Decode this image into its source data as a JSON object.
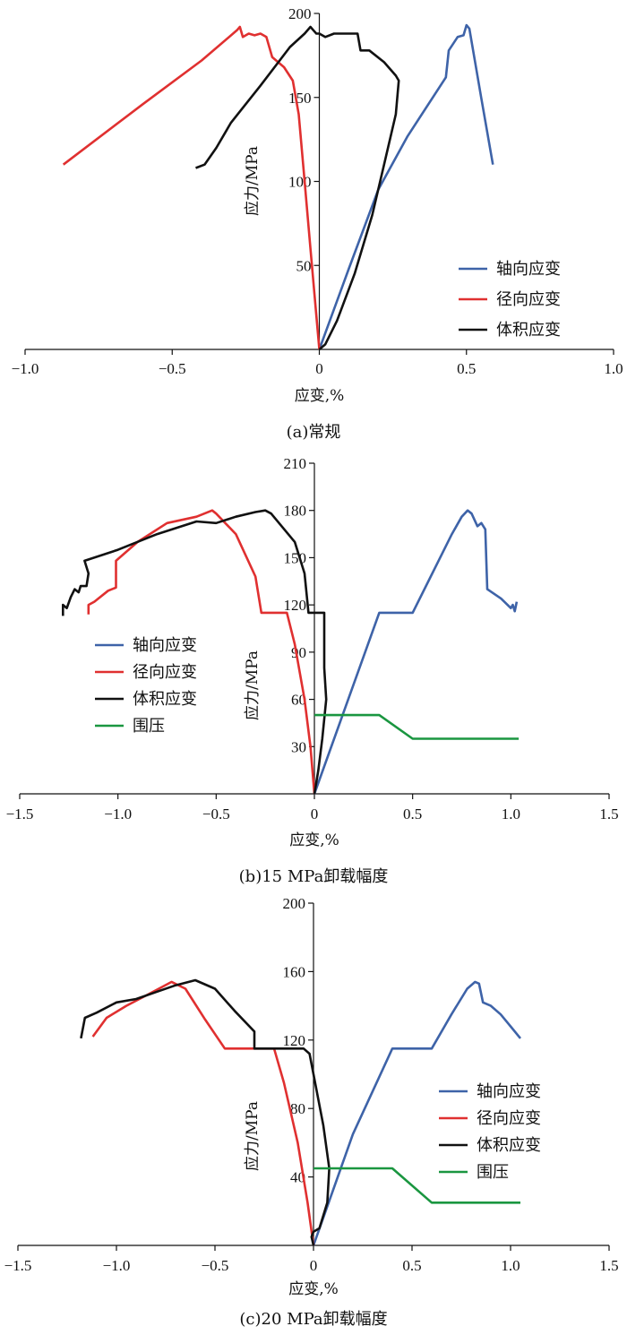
{
  "chart_data": [
    {
      "type": "line",
      "caption": "(a)常规",
      "xlabel": "应变,%",
      "ylabel": "应力/MPa",
      "xlim": [
        -1.0,
        1.0
      ],
      "ylim": [
        0,
        200
      ],
      "x_ticks": [
        "−1.0",
        "−0.5",
        "0",
        "0.5",
        "1.0"
      ],
      "x_tick_values": [
        -1.0,
        -0.5,
        0,
        0.5,
        1.0
      ],
      "y_ticks": [
        "50",
        "100",
        "150",
        "200"
      ],
      "y_tick_values": [
        50,
        100,
        150,
        200
      ],
      "legend_position": "right",
      "series": [
        {
          "name": "轴向应变",
          "color": "#3e63a8",
          "points": [
            [
              0,
              0
            ],
            [
              0.1,
              48
            ],
            [
              0.2,
              95
            ],
            [
              0.3,
              127
            ],
            [
              0.43,
              162
            ],
            [
              0.44,
              178
            ],
            [
              0.47,
              186
            ],
            [
              0.49,
              187
            ],
            [
              0.5,
              193
            ],
            [
              0.51,
              191
            ],
            [
              0.55,
              150
            ],
            [
              0.59,
              110
            ]
          ]
        },
        {
          "name": "径向应变",
          "color": "#e03030",
          "points": [
            [
              -0.87,
              110
            ],
            [
              -0.6,
              146
            ],
            [
              -0.4,
              172
            ],
            [
              -0.28,
              190
            ],
            [
              -0.27,
              192
            ],
            [
              -0.26,
              186
            ],
            [
              -0.24,
              188
            ],
            [
              -0.22,
              187
            ],
            [
              -0.2,
              188
            ],
            [
              -0.18,
              186
            ],
            [
              -0.16,
              174
            ],
            [
              -0.12,
              168
            ],
            [
              -0.09,
              160
            ],
            [
              -0.07,
              140
            ],
            [
              -0.05,
              100
            ],
            [
              -0.03,
              60
            ],
            [
              -0.01,
              20
            ],
            [
              0,
              0
            ]
          ]
        },
        {
          "name": "体积应变",
          "color": "#111111",
          "points": [
            [
              -0.42,
              108
            ],
            [
              -0.39,
              110
            ],
            [
              -0.35,
              120
            ],
            [
              -0.3,
              135
            ],
            [
              -0.2,
              157
            ],
            [
              -0.1,
              180
            ],
            [
              -0.05,
              188
            ],
            [
              -0.03,
              192
            ],
            [
              -0.02,
              190
            ],
            [
              -0.01,
              188
            ],
            [
              0,
              188
            ],
            [
              0.02,
              186
            ],
            [
              0.05,
              188
            ],
            [
              0.13,
              188
            ],
            [
              0.14,
              178
            ],
            [
              0.17,
              178
            ],
            [
              0.22,
              171
            ],
            [
              0.26,
              163
            ],
            [
              0.27,
              160
            ],
            [
              0.26,
              140
            ],
            [
              0.22,
              110
            ],
            [
              0.18,
              80
            ],
            [
              0.12,
              45
            ],
            [
              0.06,
              17
            ],
            [
              0.02,
              3
            ],
            [
              0,
              0
            ]
          ]
        }
      ]
    },
    {
      "type": "line",
      "caption": "(b)15 MPa卸载幅度",
      "xlabel": "应变,%",
      "ylabel": "应力/MPa",
      "xlim": [
        -1.5,
        1.5
      ],
      "ylim": [
        0,
        210
      ],
      "x_ticks": [
        "−1.5",
        "−1.0",
        "−0.5",
        "0",
        "0.5",
        "1.0",
        "1.5"
      ],
      "x_tick_values": [
        -1.5,
        -1.0,
        -0.5,
        0,
        0.5,
        1.0,
        1.5
      ],
      "y_ticks": [
        "30",
        "60",
        "90",
        "120",
        "150",
        "180",
        "210"
      ],
      "y_tick_values": [
        30,
        60,
        90,
        120,
        150,
        180,
        210
      ],
      "legend_position": "left",
      "series": [
        {
          "name": "轴向应变",
          "color": "#3e63a8",
          "points": [
            [
              0,
              0
            ],
            [
              0.33,
              115
            ],
            [
              0.5,
              115
            ],
            [
              0.6,
              140
            ],
            [
              0.7,
              165
            ],
            [
              0.75,
              176
            ],
            [
              0.78,
              180
            ],
            [
              0.8,
              178
            ],
            [
              0.83,
              170
            ],
            [
              0.85,
              172
            ],
            [
              0.87,
              168
            ],
            [
              0.88,
              130
            ],
            [
              0.95,
              124
            ],
            [
              1.0,
              118
            ],
            [
              1.01,
              120
            ],
            [
              1.02,
              116
            ],
            [
              1.03,
              122
            ]
          ]
        },
        {
          "name": "径向应变",
          "color": "#e03030",
          "points": [
            [
              -1.15,
              114
            ],
            [
              -1.15,
              120
            ],
            [
              -1.12,
              122
            ],
            [
              -1.05,
              129
            ],
            [
              -1.01,
              131
            ],
            [
              -1.01,
              148
            ],
            [
              -0.9,
              160
            ],
            [
              -0.75,
              172
            ],
            [
              -0.6,
              176
            ],
            [
              -0.52,
              180
            ],
            [
              -0.5,
              178
            ],
            [
              -0.4,
              165
            ],
            [
              -0.3,
              138
            ],
            [
              -0.27,
              115
            ],
            [
              -0.14,
              115
            ],
            [
              -0.1,
              95
            ],
            [
              -0.05,
              60
            ],
            [
              -0.02,
              30
            ],
            [
              0,
              0
            ]
          ]
        },
        {
          "name": "体积应变",
          "color": "#111111",
          "points": [
            [
              -1.28,
              113
            ],
            [
              -1.28,
              120
            ],
            [
              -1.26,
              118
            ],
            [
              -1.24,
              125
            ],
            [
              -1.22,
              130
            ],
            [
              -1.2,
              128
            ],
            [
              -1.19,
              132
            ],
            [
              -1.16,
              132
            ],
            [
              -1.15,
              140
            ],
            [
              -1.17,
              148
            ],
            [
              -1.0,
              155
            ],
            [
              -0.8,
              165
            ],
            [
              -0.6,
              173
            ],
            [
              -0.5,
              172
            ],
            [
              -0.4,
              176
            ],
            [
              -0.3,
              179
            ],
            [
              -0.25,
              180
            ],
            [
              -0.22,
              178
            ],
            [
              -0.1,
              160
            ],
            [
              -0.05,
              140
            ],
            [
              -0.03,
              115
            ],
            [
              0.05,
              115
            ],
            [
              0.05,
              80
            ],
            [
              0.06,
              60
            ],
            [
              0.04,
              35
            ],
            [
              0.02,
              15
            ],
            [
              0,
              0
            ]
          ]
        },
        {
          "name": "围压",
          "color": "#1a9640",
          "points": [
            [
              0,
              50
            ],
            [
              0.33,
              50
            ],
            [
              0.5,
              35
            ],
            [
              1.04,
              35
            ]
          ]
        }
      ]
    },
    {
      "type": "line",
      "caption": "(c)20 MPa卸载幅度",
      "xlabel": "应变,%",
      "ylabel": "应力/MPa",
      "xlim": [
        -1.5,
        1.5
      ],
      "ylim": [
        0,
        200
      ],
      "x_ticks": [
        "−1.5",
        "−1.0",
        "−0.5",
        "0",
        "0.5",
        "1.0",
        "1.5"
      ],
      "x_tick_values": [
        -1.5,
        -1.0,
        -0.5,
        0,
        0.5,
        1.0,
        1.5
      ],
      "y_ticks": [
        "40",
        "80",
        "120",
        "160",
        "200"
      ],
      "y_tick_values": [
        40,
        80,
        120,
        160,
        200
      ],
      "legend_position": "right",
      "series": [
        {
          "name": "轴向应变",
          "color": "#3e63a8",
          "points": [
            [
              0,
              0
            ],
            [
              0.2,
              65
            ],
            [
              0.4,
              115
            ],
            [
              0.6,
              115
            ],
            [
              0.7,
              135
            ],
            [
              0.78,
              150
            ],
            [
              0.82,
              154
            ],
            [
              0.84,
              153
            ],
            [
              0.86,
              142
            ],
            [
              0.9,
              140
            ],
            [
              0.95,
              135
            ],
            [
              1.0,
              128
            ],
            [
              1.05,
              121
            ]
          ]
        },
        {
          "name": "径向应变",
          "color": "#e03030",
          "points": [
            [
              -1.12,
              122
            ],
            [
              -1.05,
              133
            ],
            [
              -0.95,
              140
            ],
            [
              -0.85,
              146
            ],
            [
              -0.72,
              154
            ],
            [
              -0.65,
              150
            ],
            [
              -0.55,
              132
            ],
            [
              -0.45,
              115
            ],
            [
              -0.2,
              115
            ],
            [
              -0.15,
              95
            ],
            [
              -0.08,
              60
            ],
            [
              -0.03,
              25
            ],
            [
              0,
              0
            ]
          ]
        },
        {
          "name": "体积应变",
          "color": "#111111",
          "points": [
            [
              -1.18,
              121
            ],
            [
              -1.16,
              133
            ],
            [
              -1.1,
              136
            ],
            [
              -1.0,
              142
            ],
            [
              -0.9,
              144
            ],
            [
              -0.8,
              148
            ],
            [
              -0.7,
              152
            ],
            [
              -0.6,
              155
            ],
            [
              -0.5,
              150
            ],
            [
              -0.4,
              137
            ],
            [
              -0.3,
              125
            ],
            [
              -0.3,
              115
            ],
            [
              -0.05,
              115
            ],
            [
              -0.02,
              112
            ],
            [
              0.05,
              70
            ],
            [
              0.08,
              45
            ],
            [
              0.07,
              25
            ],
            [
              0.03,
              10
            ],
            [
              0,
              8
            ],
            [
              -0.01,
              5
            ],
            [
              0,
              0
            ]
          ]
        },
        {
          "name": "围压",
          "color": "#1a9640",
          "points": [
            [
              0,
              45
            ],
            [
              0.4,
              45
            ],
            [
              0.6,
              25
            ],
            [
              1.05,
              25
            ]
          ]
        }
      ]
    }
  ]
}
